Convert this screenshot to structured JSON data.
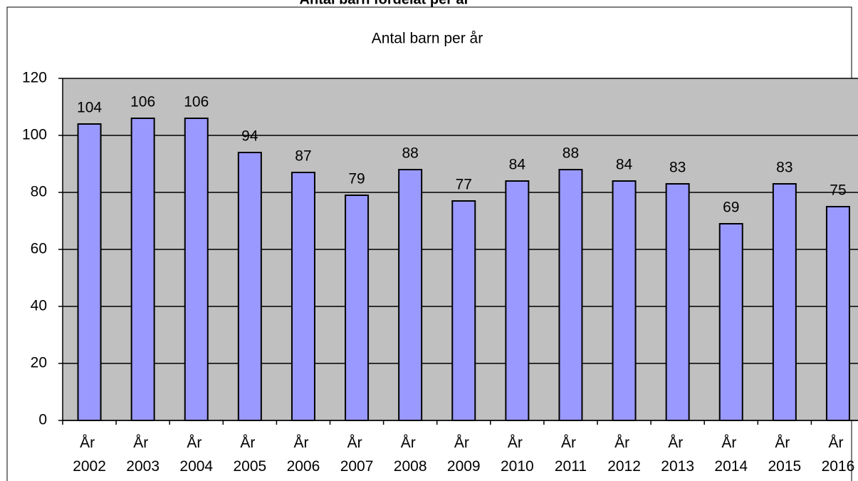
{
  "chart_data": {
    "type": "bar",
    "header": "Antal barn fördelat per år",
    "title": "Antal barn per år",
    "categories": [
      "År 2002",
      "År 2003",
      "År 2004",
      "År 2005",
      "År 2006",
      "År 2007",
      "År 2008",
      "År 2009",
      "År 2010",
      "År 2011",
      "År 2012",
      "År 2013",
      "År 2014",
      "År 2015",
      "År 2016"
    ],
    "values": [
      104,
      106,
      106,
      94,
      87,
      79,
      88,
      77,
      84,
      88,
      84,
      83,
      69,
      83,
      75
    ],
    "color": "#9999ff",
    "ylim": [
      0,
      120
    ],
    "yticks": [
      0,
      20,
      40,
      60,
      80,
      100,
      120
    ],
    "grid": true
  }
}
